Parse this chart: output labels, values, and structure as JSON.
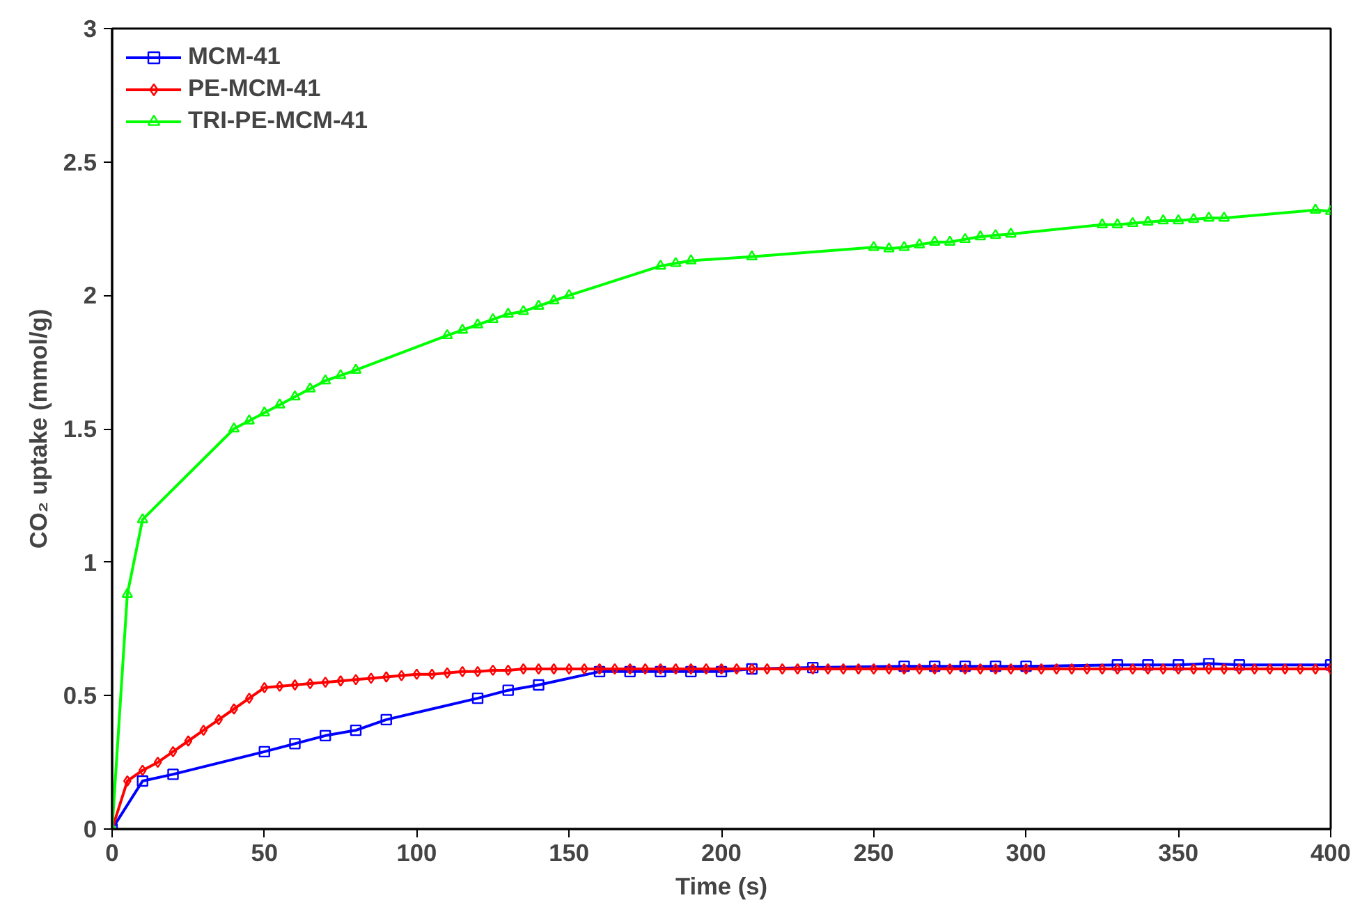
{
  "chart_data": {
    "type": "line",
    "xlabel": "Time (s)",
    "ylabel": "CO₂ uptake (mmol/g)",
    "xlim": [
      0,
      400
    ],
    "ylim": [
      0,
      3
    ],
    "xticks": [
      0,
      50,
      100,
      150,
      200,
      250,
      300,
      350,
      400
    ],
    "yticks": [
      0,
      0.5,
      1,
      1.5,
      2,
      2.5,
      3
    ],
    "grid": false,
    "legend": "top left",
    "series": [
      {
        "name": "MCM-41",
        "color": "#0000ff",
        "marker": "square",
        "x": [
          0,
          10,
          20,
          50,
          60,
          70,
          80,
          90,
          120,
          130,
          140,
          160,
          170,
          180,
          190,
          200,
          210,
          230,
          260,
          270,
          280,
          290,
          300,
          330,
          340,
          350,
          360,
          370,
          400
        ],
        "values": [
          0,
          0.18,
          0.205,
          0.29,
          0.32,
          0.35,
          0.37,
          0.41,
          0.49,
          0.52,
          0.54,
          0.59,
          0.59,
          0.59,
          0.59,
          0.59,
          0.6,
          0.605,
          0.61,
          0.61,
          0.61,
          0.61,
          0.61,
          0.615,
          0.615,
          0.615,
          0.62,
          0.615,
          0.615
        ]
      },
      {
        "name": "PE-MCM-41",
        "color": "#ff0000",
        "marker": "diamond",
        "x": [
          0,
          5,
          10,
          15,
          20,
          25,
          30,
          35,
          40,
          45,
          50,
          55,
          60,
          65,
          70,
          75,
          80,
          85,
          90,
          95,
          100,
          105,
          110,
          115,
          120,
          125,
          130,
          135,
          140,
          145,
          150,
          155,
          160,
          165,
          170,
          175,
          180,
          185,
          190,
          195,
          200,
          205,
          210,
          215,
          220,
          225,
          230,
          235,
          240,
          245,
          250,
          255,
          260,
          265,
          270,
          275,
          280,
          285,
          290,
          295,
          300,
          305,
          310,
          315,
          320,
          325,
          330,
          335,
          340,
          345,
          350,
          355,
          360,
          365,
          370,
          375,
          380,
          385,
          390,
          395,
          400
        ],
        "values": [
          0,
          0.18,
          0.22,
          0.25,
          0.29,
          0.33,
          0.37,
          0.41,
          0.45,
          0.49,
          0.53,
          0.535,
          0.54,
          0.545,
          0.55,
          0.555,
          0.56,
          0.565,
          0.57,
          0.575,
          0.58,
          0.58,
          0.585,
          0.59,
          0.59,
          0.595,
          0.595,
          0.6,
          0.6,
          0.6,
          0.6,
          0.6,
          0.6,
          0.6,
          0.6,
          0.6,
          0.6,
          0.6,
          0.6,
          0.6,
          0.6,
          0.6,
          0.6,
          0.6,
          0.6,
          0.6,
          0.6,
          0.6,
          0.6,
          0.6,
          0.6,
          0.6,
          0.6,
          0.6,
          0.6,
          0.6,
          0.6,
          0.6,
          0.6,
          0.6,
          0.6,
          0.6,
          0.6,
          0.6,
          0.6,
          0.6,
          0.6,
          0.6,
          0.6,
          0.6,
          0.6,
          0.6,
          0.6,
          0.6,
          0.6,
          0.6,
          0.6,
          0.6,
          0.6,
          0.6,
          0.6
        ]
      },
      {
        "name": "TRI-PE-MCM-41",
        "color": "#00ff00",
        "marker": "triangle",
        "x": [
          0,
          5,
          10,
          40,
          45,
          50,
          55,
          60,
          65,
          70,
          75,
          80,
          110,
          115,
          120,
          125,
          130,
          135,
          140,
          145,
          150,
          180,
          185,
          190,
          210,
          250,
          255,
          260,
          265,
          270,
          275,
          280,
          285,
          290,
          295,
          325,
          330,
          335,
          340,
          345,
          350,
          355,
          360,
          365,
          395,
          400
        ],
        "values": [
          0,
          0.88,
          1.16,
          1.5,
          1.53,
          1.56,
          1.59,
          1.62,
          1.65,
          1.68,
          1.7,
          1.72,
          1.85,
          1.87,
          1.89,
          1.91,
          1.93,
          1.94,
          1.96,
          1.98,
          2.0,
          2.11,
          2.12,
          2.13,
          2.145,
          2.18,
          2.175,
          2.18,
          2.19,
          2.2,
          2.2,
          2.21,
          2.22,
          2.225,
          2.23,
          2.265,
          2.265,
          2.27,
          2.275,
          2.28,
          2.28,
          2.285,
          2.29,
          2.29,
          2.32,
          2.315
        ]
      }
    ]
  }
}
